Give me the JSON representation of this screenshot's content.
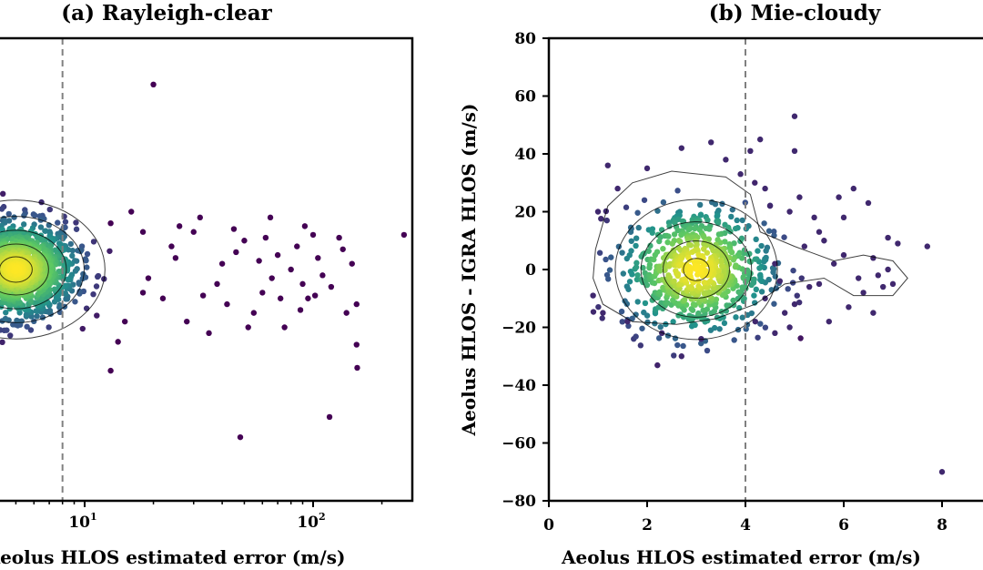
{
  "chart_data": [
    {
      "type": "scatter",
      "title": "(a) Rayleigh-clear",
      "xlabel": "Aeolus HLOS estimated error (m/s)",
      "ylabel": "",
      "xscale": "log",
      "xlim": [
        3,
        250
      ],
      "ylim": [
        -80,
        80
      ],
      "xticks": [
        {
          "base": "10",
          "exp": "1",
          "value": 10
        },
        {
          "base": "10",
          "exp": "2",
          "value": 100
        }
      ],
      "vline": 8,
      "colormap": "viridis",
      "density_core": {
        "x_center": 5,
        "y_center": 0,
        "x_log_sigma": 0.13,
        "y_sigma": 8,
        "n": 1400
      },
      "sparse_points": [
        [
          20,
          64
        ],
        [
          48,
          -58
        ],
        [
          118,
          -51
        ],
        [
          30,
          13
        ],
        [
          40,
          2
        ],
        [
          50,
          10
        ],
        [
          60,
          -8
        ],
        [
          70,
          5
        ],
        [
          80,
          0
        ],
        [
          90,
          -5
        ],
        [
          100,
          12
        ],
        [
          110,
          -2
        ],
        [
          130,
          11
        ],
        [
          155,
          -12
        ],
        [
          155,
          -26
        ],
        [
          156,
          -34
        ],
        [
          16,
          20
        ],
        [
          18,
          13
        ],
        [
          22,
          -10
        ],
        [
          25,
          4
        ],
        [
          28,
          -18
        ],
        [
          35,
          -22
        ],
        [
          45,
          14
        ],
        [
          55,
          -15
        ],
        [
          65,
          18
        ],
        [
          75,
          -20
        ],
        [
          85,
          8
        ],
        [
          95,
          -10
        ],
        [
          105,
          4
        ],
        [
          140,
          -15
        ],
        [
          250,
          12
        ],
        [
          14,
          -25
        ],
        [
          13,
          -35
        ],
        [
          18,
          -8
        ],
        [
          24,
          8
        ],
        [
          32,
          18
        ],
        [
          38,
          -5
        ],
        [
          42,
          -12
        ],
        [
          58,
          3
        ],
        [
          66,
          -3
        ],
        [
          88,
          -14
        ],
        [
          120,
          -6
        ],
        [
          13,
          16
        ],
        [
          15,
          -18
        ],
        [
          19,
          -3
        ],
        [
          26,
          15
        ],
        [
          33,
          -9
        ],
        [
          46,
          6
        ],
        [
          52,
          -20
        ],
        [
          62,
          11
        ],
        [
          72,
          -10
        ],
        [
          92,
          15
        ],
        [
          102,
          -9
        ],
        [
          135,
          7
        ],
        [
          148,
          2
        ]
      ]
    },
    {
      "type": "scatter",
      "title": "(b) Mie-cloudy",
      "xlabel": "Aeolus HLOS estimated error (m/s)",
      "ylabel": "Aeolus HLOS - IGRA HLOS (m/s)",
      "xlim": [
        0,
        9.5
      ],
      "ylim": [
        -80,
        80
      ],
      "xticks": [
        0,
        2,
        4,
        6,
        8
      ],
      "yticks": [
        -80,
        -60,
        -40,
        -20,
        0,
        20,
        40,
        60,
        80
      ],
      "vline": 4,
      "colormap": "viridis",
      "density_core": {
        "x_center": 3,
        "y_center": 0,
        "x_sigma": 0.75,
        "y_sigma": 11,
        "n": 700
      },
      "sparse_points": [
        [
          8.0,
          -70
        ],
        [
          5.0,
          53
        ],
        [
          5.0,
          41
        ],
        [
          4.1,
          41
        ],
        [
          3.3,
          44
        ],
        [
          4.3,
          45
        ],
        [
          2.7,
          42
        ],
        [
          1.2,
          36
        ],
        [
          6.0,
          18
        ],
        [
          6.2,
          28
        ],
        [
          6.5,
          23
        ],
        [
          6.9,
          11
        ],
        [
          7.7,
          8
        ],
        [
          7.1,
          9
        ],
        [
          6.4,
          -8
        ],
        [
          6.6,
          -15
        ],
        [
          5.5,
          -5
        ],
        [
          5.8,
          2
        ],
        [
          5.6,
          10
        ],
        [
          5.0,
          -12
        ],
        [
          4.8,
          -15
        ],
        [
          4.6,
          2
        ],
        [
          4.7,
          -4
        ],
        [
          5.2,
          8
        ],
        [
          5.4,
          18
        ],
        [
          4.4,
          28
        ],
        [
          4.5,
          22
        ],
        [
          5.1,
          25
        ],
        [
          4.9,
          20
        ],
        [
          5.9,
          25
        ],
        [
          6.8,
          -6
        ],
        [
          6.9,
          0
        ],
        [
          6.7,
          -2
        ],
        [
          6.3,
          -3
        ],
        [
          6.1,
          -13
        ],
        [
          5.3,
          -6
        ],
        [
          4.2,
          -18
        ],
        [
          4.9,
          -20
        ],
        [
          5.7,
          -18
        ],
        [
          0.9,
          -9
        ],
        [
          1.0,
          20
        ],
        [
          1.1,
          -15
        ],
        [
          1.4,
          28
        ],
        [
          2.0,
          35
        ],
        [
          3.6,
          38
        ],
        [
          3.9,
          33
        ],
        [
          2.3,
          -22
        ],
        [
          2.7,
          -30
        ],
        [
          3.1,
          -24
        ],
        [
          1.6,
          -18
        ],
        [
          4.4,
          -10
        ],
        [
          5.5,
          13
        ],
        [
          6.0,
          5
        ],
        [
          6.6,
          4
        ],
        [
          7.0,
          -5
        ],
        [
          4.6,
          -22
        ]
      ]
    }
  ]
}
